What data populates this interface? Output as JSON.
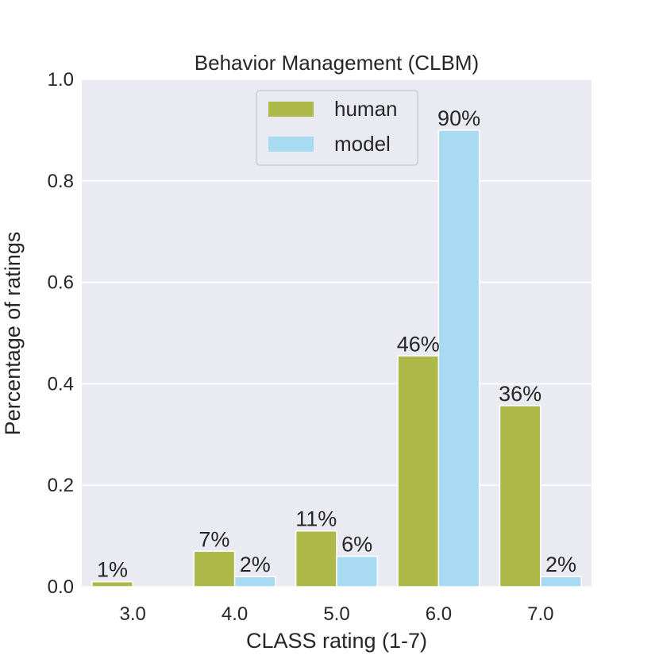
{
  "chart_data": {
    "type": "bar",
    "title": "Behavior Management (CLBM)",
    "xlabel": "CLASS rating (1-7)",
    "ylabel": "Percentage of ratings",
    "categories": [
      "3.0",
      "4.0",
      "5.0",
      "6.0",
      "7.0"
    ],
    "ylim": [
      0,
      1.0
    ],
    "yticks": [
      "0.0",
      "0.2",
      "0.4",
      "0.6",
      "0.8",
      "1.0"
    ],
    "grid": true,
    "legend_position": "top-center",
    "series": [
      {
        "name": "human",
        "color": "#adb948",
        "values": [
          0.01,
          0.07,
          0.11,
          0.455,
          0.357
        ],
        "labels": [
          "1%",
          "7%",
          "11%",
          "46%",
          "36%"
        ]
      },
      {
        "name": "model",
        "color": "#a8daf2",
        "values": [
          0.0,
          0.02,
          0.06,
          0.9,
          0.02
        ],
        "labels": [
          "",
          "2%",
          "6%",
          "90%",
          "2%"
        ]
      }
    ]
  }
}
